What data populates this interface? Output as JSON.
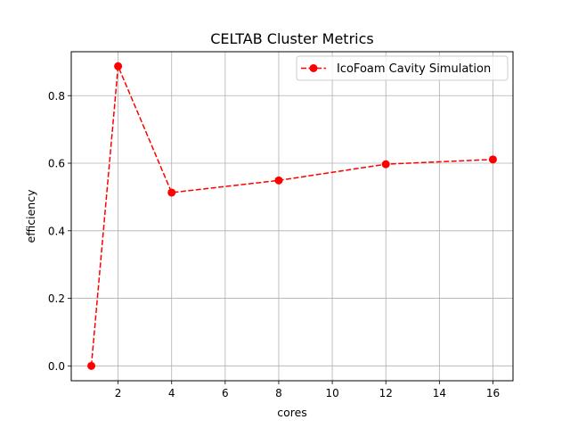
{
  "chart_data": {
    "type": "line",
    "title": "CELTAB Cluster Metrics",
    "xlabel": "cores",
    "ylabel": "efficiency",
    "xlim": [
      0.25,
      16.75
    ],
    "ylim": [
      -0.044,
      0.93
    ],
    "xticks": [
      2,
      4,
      6,
      8,
      10,
      12,
      14,
      16
    ],
    "xtick_labels": [
      "2",
      "4",
      "6",
      "8",
      "10",
      "12",
      "14",
      "16"
    ],
    "yticks": [
      0.0,
      0.2,
      0.4,
      0.6,
      0.8
    ],
    "ytick_labels": [
      "0.0",
      "0.2",
      "0.4",
      "0.6",
      "0.8"
    ],
    "grid": true,
    "legend_position": "top-right",
    "series": [
      {
        "name": "IcoFoam Cavity Simulation",
        "color": "#ff0000",
        "line_style": "dashed",
        "marker": "circle",
        "x": [
          1,
          2,
          4,
          8,
          12,
          16
        ],
        "y": [
          0.0,
          0.887,
          0.513,
          0.549,
          0.597,
          0.611
        ]
      }
    ]
  }
}
